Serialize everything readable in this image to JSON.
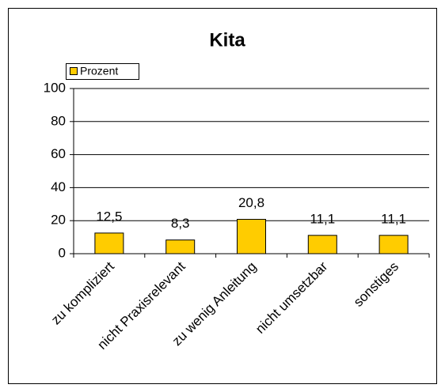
{
  "chart_data": {
    "type": "bar",
    "title": "Kita",
    "categories": [
      "zu kompliziert",
      "nicht Praxisrelevant",
      "zu wenig Anleitung",
      "nicht umsetzbar",
      "sonstiges"
    ],
    "series": [
      {
        "name": "Prozent",
        "color": "#ffcc00",
        "values": [
          12.5,
          8.3,
          20.8,
          11.1,
          11.1
        ],
        "value_labels": [
          "12,5",
          "8,3",
          "20,8",
          "11,1",
          "11,1"
        ]
      }
    ],
    "ylim": [
      0,
      100
    ],
    "yticks": [
      0,
      20,
      40,
      60,
      80,
      100
    ],
    "grid": true,
    "legend": "top-left"
  }
}
